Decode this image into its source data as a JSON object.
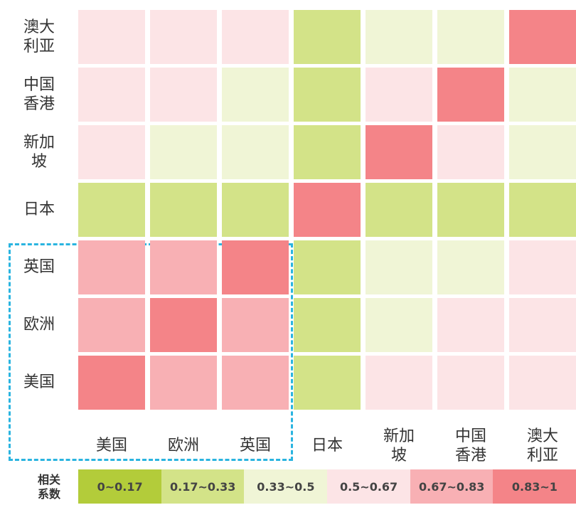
{
  "chart_data": {
    "type": "heatmap",
    "rows": [
      "澳大利亚",
      "中国香港",
      "新加坡",
      "日本",
      "英国",
      "欧洲",
      "美国"
    ],
    "columns": [
      "美国",
      "欧洲",
      "英国",
      "日本",
      "新加坡",
      "中国香港",
      "澳大利亚"
    ],
    "values": [
      [
        0.58,
        0.58,
        0.58,
        0.25,
        0.4,
        0.4,
        1
      ],
      [
        0.58,
        0.58,
        0.4,
        0.25,
        0.58,
        1,
        0.4
      ],
      [
        0.58,
        0.4,
        0.4,
        0.25,
        1,
        0.58,
        0.4
      ],
      [
        0.25,
        0.25,
        0.25,
        1,
        0.25,
        0.25,
        0.25
      ],
      [
        0.75,
        0.75,
        1,
        0.25,
        0.4,
        0.4,
        0.58
      ],
      [
        0.75,
        1,
        0.75,
        0.25,
        0.4,
        0.58,
        0.58
      ],
      [
        1,
        0.75,
        0.75,
        0.25,
        0.58,
        0.58,
        0.58
      ]
    ],
    "legend": {
      "title": "相关系数",
      "bins": [
        0,
        0.17,
        0.33,
        0.5,
        0.67,
        0.83,
        1
      ],
      "labels": [
        "0~0.17",
        "0.17~0.33",
        "0.33~0.5",
        "0.5~0.67",
        "0.67~0.83",
        "0.83~1"
      ],
      "colors": [
        "#b3cc3a",
        "#d3e388",
        "#f0f5d6",
        "#fce4e6",
        "#f8b0b4",
        "#f48488"
      ]
    }
  }
}
